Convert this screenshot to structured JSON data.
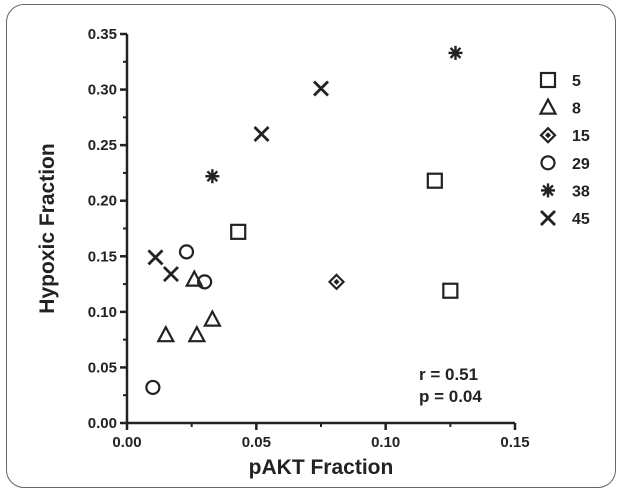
{
  "chart_data": {
    "type": "scatter",
    "title": "",
    "xlabel": "pAKT Fraction",
    "ylabel": "Hypoxic Fraction",
    "xlim": [
      0,
      0.15
    ],
    "ylim": [
      0,
      0.35
    ],
    "xticks": [
      "0.00",
      "0.05",
      "0.10",
      "0.15"
    ],
    "yticks": [
      "0.00",
      "0.05",
      "0.10",
      "0.15",
      "0.20",
      "0.25",
      "0.30",
      "0.35"
    ],
    "grid": false,
    "legend_position": "right",
    "series": [
      {
        "name": "5",
        "marker": "square",
        "points": [
          [
            0.043,
            0.172
          ],
          [
            0.119,
            0.218
          ],
          [
            0.125,
            0.119
          ]
        ]
      },
      {
        "name": "8",
        "marker": "triangle",
        "points": [
          [
            0.015,
            0.079
          ],
          [
            0.026,
            0.129
          ],
          [
            0.027,
            0.079
          ],
          [
            0.033,
            0.093
          ]
        ]
      },
      {
        "name": "15",
        "marker": "diamond",
        "points": [
          [
            0.081,
            0.127
          ]
        ]
      },
      {
        "name": "29",
        "marker": "circle",
        "points": [
          [
            0.01,
            0.032
          ],
          [
            0.023,
            0.154
          ],
          [
            0.03,
            0.127
          ]
        ]
      },
      {
        "name": "38",
        "marker": "asterisk",
        "points": [
          [
            0.033,
            0.222
          ],
          [
            0.127,
            0.333
          ]
        ]
      },
      {
        "name": "45",
        "marker": "cross",
        "points": [
          [
            0.011,
            0.149
          ],
          [
            0.017,
            0.134
          ],
          [
            0.052,
            0.26
          ],
          [
            0.075,
            0.301
          ]
        ]
      }
    ],
    "annotations": [
      "r = 0.51",
      "p = 0.04"
    ]
  }
}
